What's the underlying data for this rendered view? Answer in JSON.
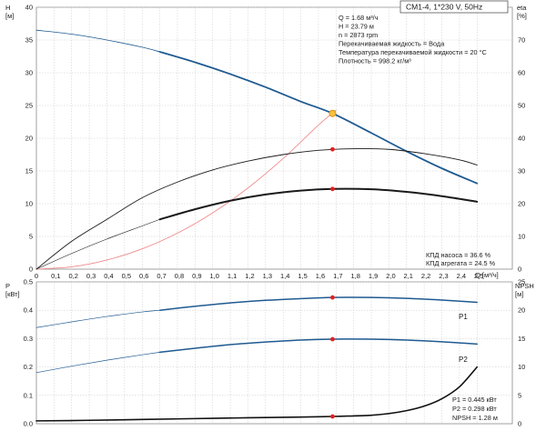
{
  "header": {
    "title": "CM1-4, 1*230 V, 50Hz"
  },
  "axes_labels": {
    "h_letter": "H",
    "h_unit": "[м]",
    "eta_letter": "eta",
    "eta_unit": "[%]",
    "p_letter": "P",
    "p_unit": "[кВт]",
    "npsh_letter": "NPSH",
    "npsh_unit": "[м]",
    "q_axis": "Q [м³/ч]"
  },
  "info_top": [
    "Q = 1.68 м³/ч",
    "H = 23.79 м",
    "n = 2873 rpm",
    "Перекачиваемая жидкость = Вода",
    "Температура перекачиваемой жидкости = 20 °C",
    "Плотность = 998.2 кг/м³"
  ],
  "info_eff": [
    "КПД насоса = 36.6 %",
    "КПД агрегата = 24.5 %"
  ],
  "info_bottom": [
    "P1 = 0.445 кВт",
    "P2 = 0.298 кВт",
    "NPSH = 1.28 м"
  ],
  "colors": {
    "pump_curve": "#1f5a91",
    "eta_curves": "#1a1a1a",
    "system_curve": "#f08c8c",
    "duty_point": "#e02020",
    "duty_marker_fill": "#f5c242",
    "grid": "#c8c8c8",
    "p_curves": "#1f5a91",
    "npsh_curve": "#111111"
  },
  "chart_data": [
    {
      "type": "line",
      "name": "top",
      "x_ticks": [
        "0",
        "0,1",
        "0,2",
        "0,3",
        "0,4",
        "0,5",
        "0,6",
        "0,7",
        "0,8",
        "0,9",
        "1,0",
        "1,1",
        "1,2",
        "1,3",
        "1,4",
        "1,5",
        "1,6",
        "1,7",
        "1,8",
        "1,9",
        "2,0",
        "2,1",
        "2,2",
        "2,3",
        "2,4",
        "2,5"
      ],
      "x_range": [
        0,
        2.7
      ],
      "y_left_range": [
        0,
        40
      ],
      "y_left_ticks": [
        "0",
        "5",
        "10",
        "15",
        "20",
        "25",
        "30",
        "35",
        "40"
      ],
      "y_right_range": [
        0,
        80
      ],
      "y_right_ticks": [
        "0",
        "10",
        "20",
        "30",
        "40",
        "50",
        "60",
        "70"
      ],
      "series": [
        {
          "role": "head_extended",
          "axis": "left",
          "x": [
            0,
            0.2,
            0.4,
            0.6,
            0.7
          ],
          "y": [
            36.5,
            35.9,
            35.0,
            33.9,
            33.2
          ]
        },
        {
          "role": "head",
          "axis": "left",
          "x": [
            0.7,
            0.9,
            1.1,
            1.3,
            1.5,
            1.68,
            1.9,
            2.1,
            2.3,
            2.5
          ],
          "y": [
            33.2,
            31.6,
            29.8,
            27.8,
            25.6,
            23.79,
            20.8,
            18.0,
            15.4,
            13.1
          ]
        },
        {
          "role": "system_curve",
          "axis": "left",
          "x": [
            0,
            0.2,
            0.4,
            0.6,
            0.8,
            1.0,
            1.2,
            1.4,
            1.6,
            1.7
          ],
          "y": [
            0,
            0.35,
            1.4,
            3.1,
            5.5,
            8.6,
            12.4,
            16.9,
            22.0,
            24.3
          ]
        },
        {
          "role": "eta_pump",
          "axis": "right",
          "x": [
            0,
            0.2,
            0.4,
            0.6,
            0.8,
            1.0,
            1.2,
            1.4,
            1.6,
            1.8,
            2.0,
            2.2,
            2.4,
            2.5
          ],
          "y": [
            0,
            8.5,
            15.2,
            21.8,
            26.6,
            30.3,
            33.0,
            35.0,
            36.3,
            36.8,
            36.6,
            35.3,
            33.4,
            31.8
          ]
        },
        {
          "role": "eta_unit_extended",
          "axis": "right",
          "x": [
            0,
            0.2,
            0.4,
            0.6,
            0.7
          ],
          "y": [
            0,
            4.8,
            9.2,
            13.2,
            15.2
          ]
        },
        {
          "role": "eta_unit",
          "axis": "right",
          "x": [
            0.7,
            0.9,
            1.1,
            1.3,
            1.5,
            1.68,
            1.9,
            2.1,
            2.3,
            2.5
          ],
          "y": [
            15.2,
            18.3,
            20.9,
            22.8,
            24.0,
            24.5,
            24.4,
            23.6,
            22.3,
            20.6
          ]
        }
      ],
      "duty_points": [
        {
          "axis": "left",
          "x": 1.68,
          "y": 23.79,
          "style": "marker"
        },
        {
          "axis": "right",
          "x": 1.68,
          "y": 36.6,
          "style": "dot"
        },
        {
          "axis": "right",
          "x": 1.68,
          "y": 24.5,
          "style": "dot"
        }
      ]
    },
    {
      "type": "line",
      "name": "bottom",
      "x_range": [
        0,
        2.7
      ],
      "y_left_range": [
        0,
        0.5
      ],
      "y_left_ticks": [
        "0.0",
        "0.1",
        "0.2",
        "0.3",
        "0.4",
        "0.5"
      ],
      "y_right_range": [
        0,
        25
      ],
      "y_right_ticks": [
        "0",
        "5",
        "10",
        "15",
        "20",
        "25"
      ],
      "series": [
        {
          "role": "p1_extended",
          "axis": "left",
          "label": "",
          "x": [
            0,
            0.2,
            0.4,
            0.6,
            0.7
          ],
          "y": [
            0.339,
            0.359,
            0.378,
            0.394,
            0.4
          ]
        },
        {
          "role": "p1",
          "axis": "left",
          "label": "P1",
          "x": [
            0.7,
            0.9,
            1.1,
            1.3,
            1.5,
            1.68,
            1.9,
            2.1,
            2.3,
            2.5
          ],
          "y": [
            0.4,
            0.414,
            0.426,
            0.435,
            0.441,
            0.445,
            0.445,
            0.442,
            0.436,
            0.428
          ]
        },
        {
          "role": "p2_extended",
          "axis": "left",
          "label": "",
          "x": [
            0,
            0.2,
            0.4,
            0.6,
            0.7
          ],
          "y": [
            0.18,
            0.203,
            0.224,
            0.243,
            0.252
          ]
        },
        {
          "role": "p2",
          "axis": "left",
          "label": "P2",
          "x": [
            0.7,
            0.9,
            1.1,
            1.3,
            1.5,
            1.68,
            1.9,
            2.1,
            2.3,
            2.5
          ],
          "y": [
            0.252,
            0.266,
            0.279,
            0.288,
            0.295,
            0.298,
            0.298,
            0.295,
            0.289,
            0.281
          ]
        },
        {
          "role": "npsh",
          "axis": "right",
          "label": "",
          "x": [
            0,
            0.3,
            0.6,
            0.9,
            1.2,
            1.5,
            1.68,
            1.9,
            2.0,
            2.1,
            2.2,
            2.3,
            2.4,
            2.5
          ],
          "y": [
            0.5,
            0.6,
            0.75,
            0.9,
            1.05,
            1.18,
            1.28,
            1.5,
            1.8,
            2.3,
            3.1,
            4.4,
            6.5,
            10.0
          ]
        }
      ],
      "duty_points": [
        {
          "axis": "left",
          "x": 1.68,
          "y": 0.445
        },
        {
          "axis": "left",
          "x": 1.68,
          "y": 0.298
        },
        {
          "axis": "right",
          "x": 1.68,
          "y": 1.28
        }
      ]
    }
  ]
}
